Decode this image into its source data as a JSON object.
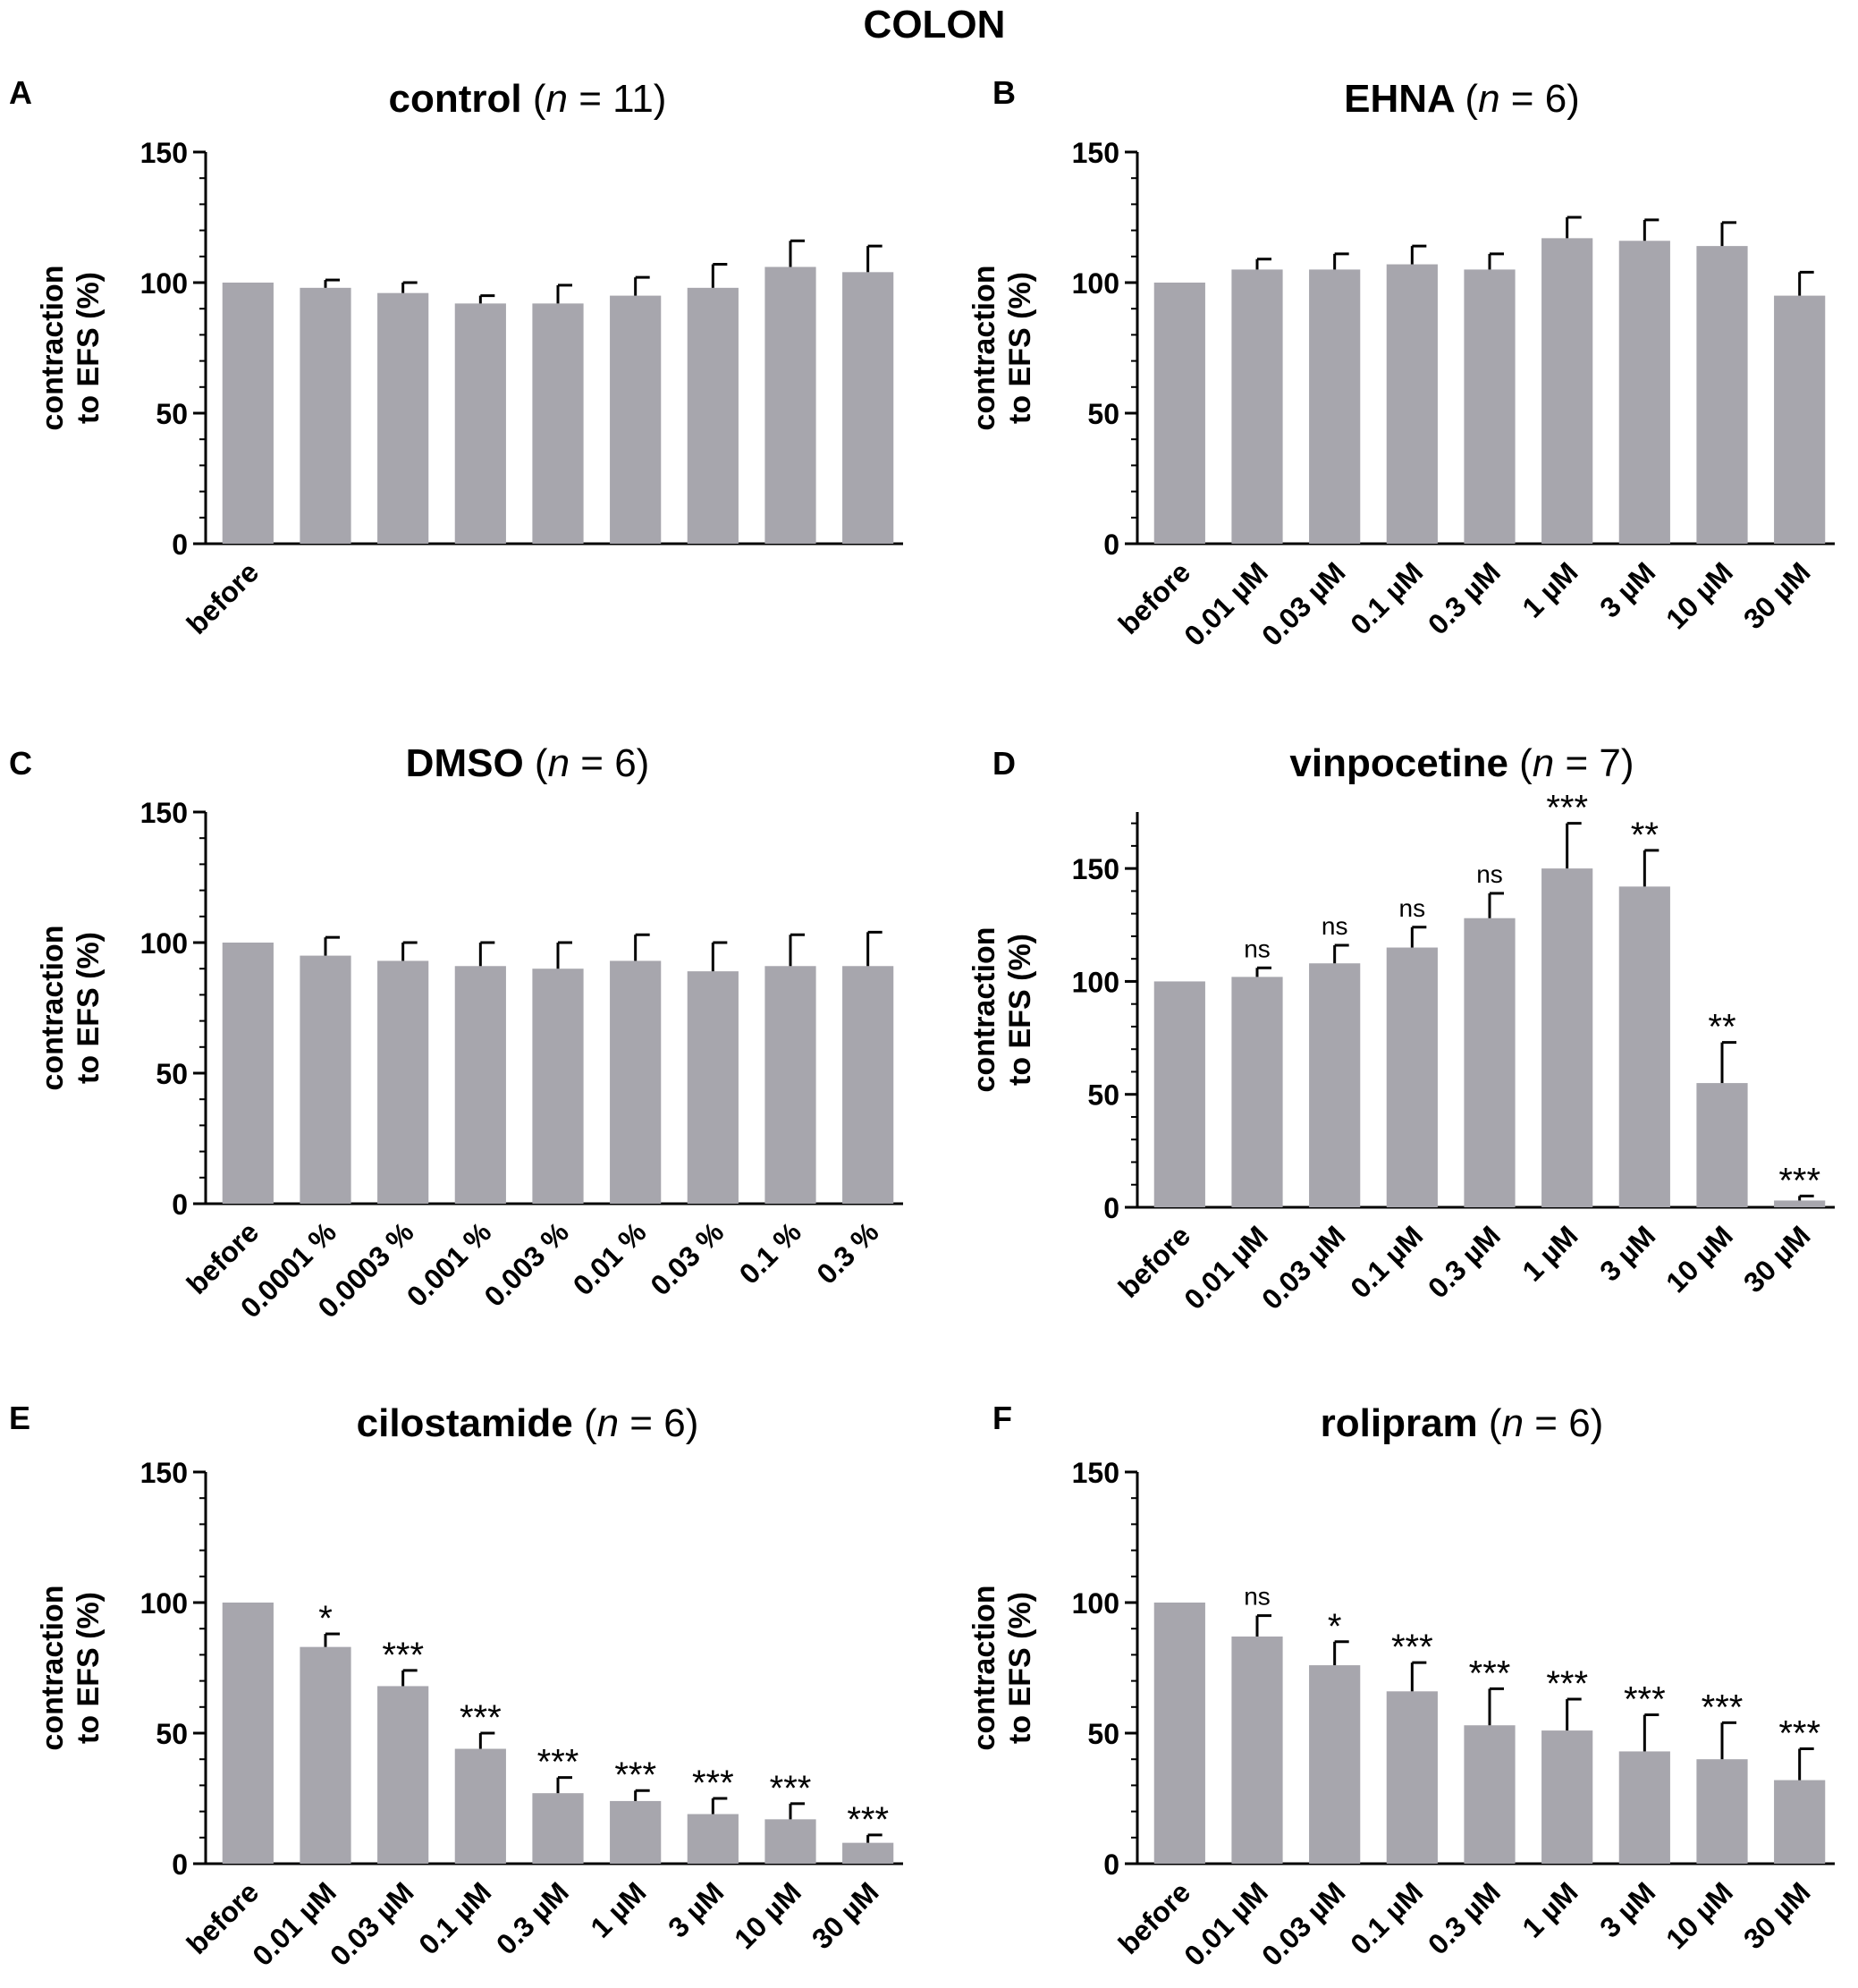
{
  "figure_title": "COLON",
  "chart_data": [
    {
      "type": "bar",
      "panel": "A",
      "title": "control",
      "n_label": "n",
      "n_value": "= 11)",
      "n_open": "(",
      "ylabel_line1": "contraction",
      "ylabel_line2": "to EFS (%)",
      "xlabel": "",
      "ylim": [
        0,
        150
      ],
      "yticks": [
        0,
        50,
        100,
        150
      ],
      "categories": [
        "before",
        "",
        "",
        "",
        "",
        "",
        "",
        "",
        ""
      ],
      "values": [
        100,
        98,
        96,
        92,
        92,
        95,
        98,
        106,
        104
      ],
      "errors": [
        0,
        3,
        4,
        3,
        7,
        7,
        9,
        10,
        10
      ],
      "significance": [
        "",
        "",
        "",
        "",
        "",
        "",
        "",
        "",
        ""
      ]
    },
    {
      "type": "bar",
      "panel": "B",
      "title": "EHNA",
      "n_label": "n",
      "n_value": "= 6)",
      "n_open": "(",
      "ylabel_line1": "contraction",
      "ylabel_line2": "to EFS (%)",
      "xlabel": "",
      "ylim": [
        0,
        150
      ],
      "yticks": [
        0,
        50,
        100,
        150
      ],
      "categories": [
        "before",
        "0.01 µM",
        "0.03 µM",
        "0.1 µM",
        "0.3 µM",
        "1 µM",
        "3 µM",
        "10 µM",
        "30 µM"
      ],
      "values": [
        100,
        105,
        105,
        107,
        105,
        117,
        116,
        114,
        95
      ],
      "errors": [
        0,
        4,
        6,
        7,
        6,
        8,
        8,
        9,
        9
      ],
      "significance": [
        "",
        "",
        "",
        "",
        "",
        "",
        "",
        "",
        ""
      ]
    },
    {
      "type": "bar",
      "panel": "C",
      "title": "DMSO",
      "n_label": "n",
      "n_value": "= 6)",
      "n_open": "(",
      "ylabel_line1": "contraction",
      "ylabel_line2": "to EFS (%)",
      "xlabel": "",
      "ylim": [
        0,
        150
      ],
      "yticks": [
        0,
        50,
        100,
        150
      ],
      "categories": [
        "before",
        "0.0001 %",
        "0.0003 %",
        "0.001 %",
        "0.003 %",
        "0.01 %",
        "0.03 %",
        "0.1 %",
        "0.3 %"
      ],
      "values": [
        100,
        95,
        93,
        91,
        90,
        93,
        89,
        91,
        91
      ],
      "errors": [
        0,
        7,
        7,
        9,
        10,
        10,
        11,
        12,
        13
      ],
      "significance": [
        "",
        "",
        "",
        "",
        "",
        "",
        "",
        "",
        ""
      ]
    },
    {
      "type": "bar",
      "panel": "D",
      "title": "vinpocetine",
      "n_label": "n",
      "n_value": "= 7)",
      "n_open": "(",
      "ylabel_line1": "contraction",
      "ylabel_line2": "to EFS (%)",
      "xlabel": "",
      "ylim": [
        0,
        175
      ],
      "yticks": [
        0,
        50,
        100,
        150
      ],
      "categories": [
        "before",
        "0.01 µM",
        "0.03 µM",
        "0.1 µM",
        "0.3 µM",
        "1 µM",
        "3 µM",
        "10 µM",
        "30 µM"
      ],
      "values": [
        100,
        102,
        108,
        115,
        128,
        150,
        142,
        55,
        3
      ],
      "errors": [
        0,
        4,
        8,
        9,
        11,
        20,
        16,
        18,
        2
      ],
      "significance": [
        "",
        "ns",
        "ns",
        "ns",
        "ns",
        "***",
        "**",
        "**",
        "***"
      ]
    },
    {
      "type": "bar",
      "panel": "E",
      "title": "cilostamide",
      "n_label": "n",
      "n_value": "= 6)",
      "n_open": "(",
      "ylabel_line1": "contraction",
      "ylabel_line2": "to EFS (%)",
      "xlabel": "",
      "ylim": [
        0,
        150
      ],
      "yticks": [
        0,
        50,
        100,
        150
      ],
      "categories": [
        "before",
        "0.01 µM",
        "0.03 µM",
        "0.1 µM",
        "0.3 µM",
        "1 µM",
        "3 µM",
        "10 µM",
        "30 µM"
      ],
      "values": [
        100,
        83,
        68,
        44,
        27,
        24,
        19,
        17,
        8
      ],
      "errors": [
        0,
        5,
        6,
        6,
        6,
        4,
        6,
        6,
        3
      ],
      "significance": [
        "",
        "*",
        "***",
        "***",
        "***",
        "***",
        "***",
        "***",
        "***"
      ]
    },
    {
      "type": "bar",
      "panel": "F",
      "title": "rolipram",
      "n_label": "n",
      "n_value": "= 6)",
      "n_open": "(",
      "ylabel_line1": "contraction",
      "ylabel_line2": "to EFS (%)",
      "xlabel": "",
      "ylim": [
        0,
        150
      ],
      "yticks": [
        0,
        50,
        100,
        150
      ],
      "categories": [
        "before",
        "0.01 µM",
        "0.03 µM",
        "0.1 µM",
        "0.3 µM",
        "1 µM",
        "3 µM",
        "10 µM",
        "30 µM"
      ],
      "values": [
        100,
        87,
        76,
        66,
        53,
        51,
        43,
        40,
        32
      ],
      "errors": [
        0,
        8,
        9,
        11,
        14,
        12,
        14,
        14,
        12
      ],
      "significance": [
        "",
        "ns",
        "*",
        "***",
        "***",
        "***",
        "***",
        "***",
        "***"
      ]
    }
  ],
  "colors": {
    "bar": "#a7a6ad",
    "axis": "#000000",
    "text": "#000000"
  }
}
